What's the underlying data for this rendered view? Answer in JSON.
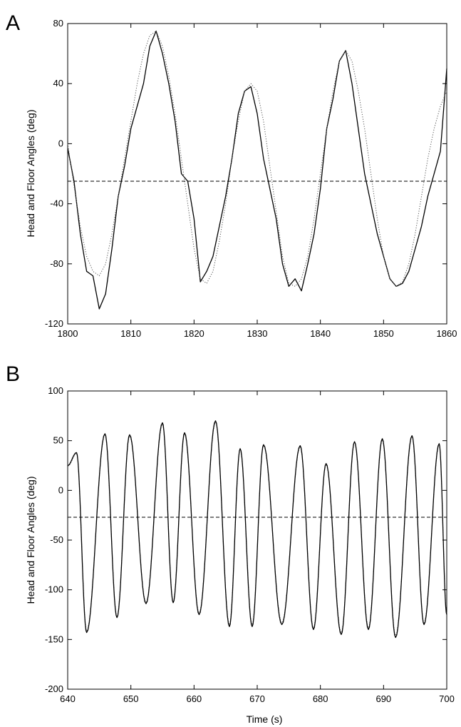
{
  "chart_data": [
    {
      "panel": "A",
      "type": "line",
      "ylabel": "Head and Floor Angles (deg)",
      "xlabel": "",
      "xlim": [
        1800,
        1860
      ],
      "ylim": [
        -120,
        80
      ],
      "xticks": [
        "1800",
        "1810",
        "1820",
        "1830",
        "1840",
        "1850",
        "1860"
      ],
      "yticks": [
        "-120",
        "-80",
        "-40",
        "0",
        "40",
        "80"
      ],
      "grid": false,
      "series": [
        {
          "style": "solid",
          "x": [
            1800,
            1801,
            1802,
            1803,
            1804,
            1805,
            1806,
            1807,
            1808,
            1809,
            1810,
            1811,
            1812,
            1813,
            1814,
            1815,
            1816,
            1817,
            1818,
            1819,
            1820,
            1821,
            1822,
            1823,
            1824,
            1825,
            1826,
            1827,
            1828,
            1829,
            1830,
            1831,
            1832,
            1833,
            1834,
            1835,
            1836,
            1837,
            1838,
            1839,
            1840,
            1841,
            1842,
            1843,
            1844,
            1845,
            1846,
            1847,
            1848,
            1849,
            1850,
            1851,
            1852,
            1853,
            1854,
            1855,
            1856,
            1857,
            1858,
            1859,
            1860
          ],
          "y": [
            -3,
            -25,
            -60,
            -85,
            -88,
            -110,
            -100,
            -70,
            -35,
            -15,
            10,
            25,
            40,
            65,
            75,
            60,
            40,
            15,
            -20,
            -25,
            -50,
            -92,
            -85,
            -75,
            -55,
            -35,
            -10,
            20,
            35,
            38,
            20,
            -10,
            -30,
            -50,
            -80,
            -95,
            -90,
            -98,
            -80,
            -60,
            -30,
            10,
            30,
            55,
            62,
            40,
            10,
            -20,
            -40,
            -60,
            -75,
            -90,
            -95,
            -93,
            -85,
            -70,
            -55,
            -35,
            -20,
            -5,
            50
          ]
        },
        {
          "style": "dotted",
          "x": [
            1800,
            1801,
            1802,
            1803,
            1804,
            1805,
            1806,
            1807,
            1808,
            1809,
            1810,
            1811,
            1812,
            1813,
            1814,
            1815,
            1816,
            1817,
            1818,
            1819,
            1820,
            1821,
            1822,
            1823,
            1824,
            1825,
            1826,
            1827,
            1828,
            1829,
            1830,
            1831,
            1832,
            1833,
            1834,
            1835,
            1836,
            1837,
            1838,
            1839,
            1840,
            1841,
            1842,
            1843,
            1844,
            1845,
            1846,
            1847,
            1848,
            1849,
            1850,
            1851,
            1852,
            1853,
            1854,
            1855,
            1856,
            1857,
            1858,
            1859,
            1860
          ],
          "y": [
            0,
            -28,
            -55,
            -75,
            -85,
            -88,
            -80,
            -60,
            -35,
            -10,
            15,
            40,
            60,
            72,
            75,
            65,
            45,
            20,
            -10,
            -40,
            -70,
            -90,
            -93,
            -85,
            -65,
            -40,
            -10,
            15,
            35,
            40,
            35,
            15,
            -15,
            -45,
            -75,
            -93,
            -95,
            -90,
            -75,
            -50,
            -20,
            10,
            35,
            55,
            62,
            55,
            35,
            10,
            -20,
            -50,
            -75,
            -90,
            -95,
            -92,
            -80,
            -60,
            -35,
            -10,
            10,
            25,
            35
          ]
        },
        {
          "style": "dashed",
          "x": [
            1800,
            1860
          ],
          "y": [
            -25,
            -25
          ]
        }
      ]
    },
    {
      "panel": "B",
      "type": "line",
      "ylabel": "Head and Floor Angles (deg)",
      "xlabel": "Time (s)",
      "xlim": [
        640,
        700
      ],
      "ylim": [
        -200,
        100
      ],
      "xticks": [
        "640",
        "650",
        "660",
        "670",
        "680",
        "690",
        "700"
      ],
      "yticks": [
        "-200",
        "-150",
        "-100",
        "-50",
        "0",
        "50",
        "100"
      ],
      "grid": false,
      "peaks": {
        "times": [
          641.4,
          645.9,
          649.8,
          655.0,
          658.5,
          663.4,
          667.3,
          671.0,
          676.8,
          680.9,
          685.4,
          689.8,
          694.5,
          698.8
        ],
        "max": [
          38,
          57,
          56,
          68,
          58,
          70,
          42,
          46,
          45,
          27,
          49,
          52,
          55,
          47
        ]
      },
      "troughs": {
        "times": [
          643.0,
          647.8,
          652.4,
          656.7,
          660.8,
          665.6,
          669.2,
          673.9,
          678.9,
          683.3,
          687.6,
          691.9,
          696.4,
          700.0
        ],
        "min": [
          -143,
          -128,
          -114,
          -113,
          -125,
          -137,
          -137,
          -135,
          -140,
          -145,
          -140,
          -148,
          -135,
          -125
        ]
      },
      "series": [
        {
          "style": "solid"
        },
        {
          "style": "dotted"
        },
        {
          "style": "dashed",
          "x": [
            640,
            700
          ],
          "y": [
            -27,
            -27
          ]
        }
      ]
    }
  ]
}
